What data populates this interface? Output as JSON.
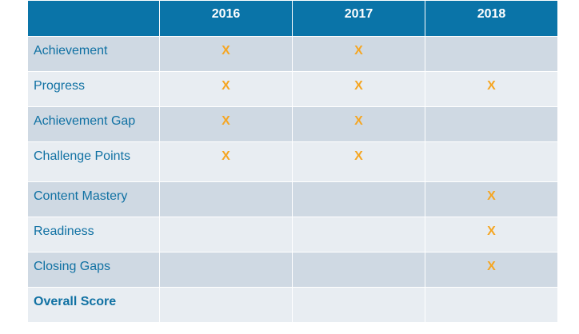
{
  "table": {
    "columns": [
      "",
      "2016",
      "2017",
      "2018"
    ],
    "rows": [
      {
        "label": "Achievement",
        "cells": [
          "X",
          "X",
          ""
        ]
      },
      {
        "label": "Progress",
        "cells": [
          "X",
          "X",
          "X"
        ]
      },
      {
        "label": "Achievement Gap",
        "cells": [
          "X",
          "X",
          ""
        ]
      },
      {
        "label": "Challenge Points",
        "cells": [
          "X",
          "X",
          ""
        ]
      },
      {
        "label": "Content Mastery",
        "cells": [
          "",
          "",
          "X"
        ]
      },
      {
        "label": "Readiness",
        "cells": [
          "",
          "",
          "X"
        ]
      },
      {
        "label": "Closing Gaps",
        "cells": [
          "",
          "",
          "X"
        ]
      },
      {
        "label": "Overall Score",
        "cells": [
          "",
          "",
          ""
        ]
      }
    ]
  },
  "colors": {
    "header_bg": "#0a74a8",
    "label_text": "#1071a3",
    "mark": "#f5a623",
    "row_dark": "#cfd9e3",
    "row_light": "#e8edf2"
  }
}
